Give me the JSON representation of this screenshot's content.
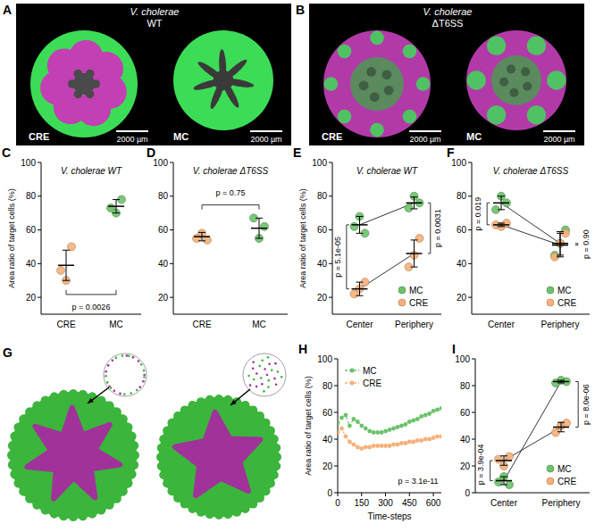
{
  "image_panels": [
    {
      "panel": "A",
      "title": "V. cholerae WT",
      "labels": [
        "CRE",
        "MC"
      ],
      "scale_bars": [
        "2000 µm",
        "2000 µm"
      ]
    },
    {
      "panel": "B",
      "title": "V. cholerae ΔT6SS",
      "labels": [
        "CRE",
        "MC"
      ],
      "scale_bars": [
        "2000 µm",
        "2000 µm"
      ]
    },
    {
      "panel": "G"
    }
  ],
  "chart_data": [
    {
      "panel": "C",
      "type": "strip",
      "title": "V. cholerae WT",
      "y_label": "Area ratio of target cells (%)",
      "categories": [
        "CRE",
        "MC"
      ],
      "colors": [
        "#f7b07a",
        "#6cc26c"
      ],
      "values": [
        39,
        74
      ],
      "errors": [
        9,
        4
      ],
      "points": [
        [
          36,
          30,
          50
        ],
        [
          73,
          70,
          78
        ]
      ],
      "ylim": [
        10,
        100
      ],
      "yticks": [
        20,
        40,
        60,
        80,
        100
      ],
      "annotations": [
        "p = 0.0026"
      ]
    },
    {
      "panel": "D",
      "type": "strip",
      "title": "V. cholerae ΔT6SS",
      "categories": [
        "CRE",
        "MC"
      ],
      "colors": [
        "#f7b07a",
        "#6cc26c"
      ],
      "values": [
        56,
        61
      ],
      "errors": [
        2.5,
        6
      ],
      "points": [
        [
          55,
          58,
          54
        ],
        [
          67,
          55,
          62
        ]
      ],
      "ylim": [
        10,
        100
      ],
      "yticks": [
        20,
        40,
        60,
        80,
        100
      ],
      "annotations": [
        "p = 0.75"
      ]
    },
    {
      "panel": "E",
      "type": "strip",
      "title": "V. cholerae WT",
      "y_label": "Area ratio of target cells (%)",
      "categories": [
        "Center",
        "Periphery"
      ],
      "series": [
        {
          "name": "MC",
          "color": "#6cc26c",
          "values": [
            63,
            76
          ],
          "errors": [
            5,
            3.5
          ],
          "points": [
            [
              62,
              68,
              58
            ],
            [
              73,
              80,
              76
            ]
          ]
        },
        {
          "name": "CRE",
          "color": "#f7b07a",
          "values": [
            25,
            46
          ],
          "errors": [
            4,
            8
          ],
          "points": [
            [
              22,
              25,
              29
            ],
            [
              38,
              45,
              55
            ]
          ]
        }
      ],
      "ylim": [
        10,
        100
      ],
      "yticks": [
        20,
        40,
        60,
        80,
        100
      ],
      "legend": "bottom-right",
      "line_style": "solid",
      "annotations": [
        "p = 5.1e-05",
        "p = 0.0031"
      ]
    },
    {
      "panel": "F",
      "type": "strip",
      "title": "V. cholerae ΔT6SS",
      "categories": [
        "Center",
        "Periphery"
      ],
      "series": [
        {
          "name": "MC",
          "color": "#6cc26c",
          "values": [
            76,
            52
          ],
          "errors": [
            4,
            7
          ],
          "points": [
            [
              72,
              80,
              76
            ],
            [
              45,
              52,
              60
            ]
          ]
        },
        {
          "name": "CRE",
          "color": "#f7b07a",
          "values": [
            63,
            51
          ],
          "errors": [
            1,
            7
          ],
          "points": [
            [
              63,
              62,
              64
            ],
            [
              44,
              52,
              58
            ]
          ]
        }
      ],
      "ylim": [
        10,
        100
      ],
      "yticks": [
        20,
        40,
        60,
        80,
        100
      ],
      "legend": "bottom-right",
      "line_style": "solid",
      "annotations": [
        "p = 0.019",
        "p = 0.90"
      ]
    },
    {
      "panel": "H",
      "type": "line",
      "x_label": "Time-steps",
      "y_label": "Area ratio of target cells (%)",
      "x": [
        0,
        25,
        50,
        75,
        100,
        125,
        150,
        175,
        200,
        225,
        250,
        275,
        300,
        325,
        350,
        375,
        400,
        425,
        450,
        475,
        500,
        525,
        550,
        575,
        600,
        625,
        650
      ],
      "series": [
        {
          "name": "MC",
          "color": "#6cc26c",
          "marker": "circle",
          "line_style": "dashed",
          "values": [
            52,
            56,
            58,
            50,
            55,
            53,
            50,
            48,
            46,
            45,
            45,
            45,
            46,
            47,
            48,
            49,
            50,
            51,
            53,
            54,
            55,
            57,
            58,
            59,
            61,
            62,
            63
          ]
        },
        {
          "name": "CRE",
          "color": "#f7b07a",
          "marker": "circle",
          "line_style": "dashed",
          "values": [
            45,
            48,
            42,
            38,
            36,
            34,
            33,
            34,
            34,
            35,
            35,
            35,
            35,
            35,
            36,
            36,
            37,
            37,
            38,
            38,
            39,
            39,
            40,
            40,
            41,
            42,
            42
          ]
        }
      ],
      "xlim": [
        0,
        650
      ],
      "xticks": [
        0,
        150,
        300,
        450,
        600
      ],
      "ylim": [
        0,
        100
      ],
      "yticks": [
        0,
        20,
        40,
        60,
        80,
        100
      ],
      "legend": "top-left",
      "annotations": [
        "p = 3.1e-11"
      ]
    },
    {
      "panel": "I",
      "type": "strip",
      "categories": [
        "Center",
        "Periphery"
      ],
      "series": [
        {
          "name": "MC",
          "color": "#6cc26c",
          "values": [
            9,
            83
          ],
          "errors": [
            3,
            1
          ],
          "points": [
            [
              8,
              12,
              6
            ],
            [
              82,
              84,
              83
            ]
          ]
        },
        {
          "name": "CRE",
          "color": "#f7b07a",
          "values": [
            24,
            49
          ],
          "errors": [
            3.5,
            3.5
          ],
          "points": [
            [
              25,
              20,
              27
            ],
            [
              45,
              50,
              52
            ]
          ]
        }
      ],
      "ylim": [
        0,
        100
      ],
      "yticks": [
        0,
        20,
        40,
        60,
        80,
        100
      ],
      "legend": "bottom-right",
      "line_style": "solid",
      "annotations": [
        "p = 3.9e-04",
        "p = 8.0e-06"
      ]
    }
  ]
}
